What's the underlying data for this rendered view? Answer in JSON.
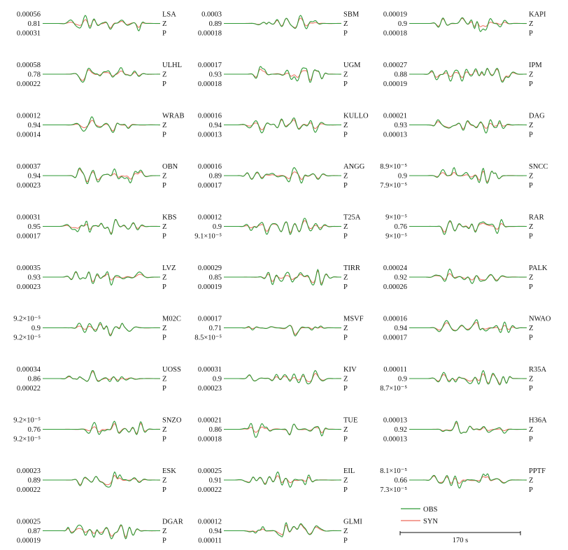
{
  "chart_data": {
    "type": "line",
    "legend": {
      "placement": "bottom-right",
      "entries": [
        "OBS",
        "SYN"
      ]
    },
    "colors": {
      "OBS": "#2e9a36",
      "SYN": "#ee6b5a"
    },
    "scale_bar_label": "170 s",
    "panels": [
      {
        "station": "LSA",
        "component": "Z",
        "phase": "P",
        "obs_amp": "0.00056",
        "cc": "0.81",
        "syn_amp": "0.00031"
      },
      {
        "station": "SBM",
        "component": "Z",
        "phase": "P",
        "obs_amp": "0.0003",
        "cc": "0.89",
        "syn_amp": "0.00018"
      },
      {
        "station": "KAPI",
        "component": "Z",
        "phase": "P",
        "obs_amp": "0.00019",
        "cc": "0.9",
        "syn_amp": "0.00018"
      },
      {
        "station": "ULHL",
        "component": "Z",
        "phase": "P",
        "obs_amp": "0.00058",
        "cc": "0.78",
        "syn_amp": "0.00022"
      },
      {
        "station": "UGM",
        "component": "Z",
        "phase": "P",
        "obs_amp": "0.00017",
        "cc": "0.93",
        "syn_amp": "0.00018"
      },
      {
        "station": "IPM",
        "component": "Z",
        "phase": "P",
        "obs_amp": "0.00027",
        "cc": "0.88",
        "syn_amp": "0.00019"
      },
      {
        "station": "WRAB",
        "component": "Z",
        "phase": "P",
        "obs_amp": "0.00012",
        "cc": "0.94",
        "syn_amp": "0.00014"
      },
      {
        "station": "KULLO",
        "component": "Z",
        "phase": "P",
        "obs_amp": "0.00016",
        "cc": "0.94",
        "syn_amp": "0.00013"
      },
      {
        "station": "DAG",
        "component": "Z",
        "phase": "P",
        "obs_amp": "0.00021",
        "cc": "0.93",
        "syn_amp": "0.00013"
      },
      {
        "station": "OBN",
        "component": "Z",
        "phase": "P",
        "obs_amp": "0.00037",
        "cc": "0.94",
        "syn_amp": "0.00023"
      },
      {
        "station": "ANGG",
        "component": "Z",
        "phase": "P",
        "obs_amp": "0.00016",
        "cc": "0.89",
        "syn_amp": "0.00017"
      },
      {
        "station": "SNCC",
        "component": "Z",
        "phase": "P",
        "obs_amp": "8.9×10⁻⁵",
        "cc": "0.9",
        "syn_amp": "7.9×10⁻⁵"
      },
      {
        "station": "KBS",
        "component": "Z",
        "phase": "P",
        "obs_amp": "0.00031",
        "cc": "0.95",
        "syn_amp": "0.00017"
      },
      {
        "station": "T25A",
        "component": "Z",
        "phase": "P",
        "obs_amp": "0.00012",
        "cc": "0.9",
        "syn_amp": "9.1×10⁻⁵"
      },
      {
        "station": "RAR",
        "component": "Z",
        "phase": "P",
        "obs_amp": "9×10⁻⁵",
        "cc": "0.76",
        "syn_amp": "9×10⁻⁵"
      },
      {
        "station": "LVZ",
        "component": "Z",
        "phase": "P",
        "obs_amp": "0.00035",
        "cc": "0.93",
        "syn_amp": "0.00023"
      },
      {
        "station": "TIRR",
        "component": "Z",
        "phase": "P",
        "obs_amp": "0.00029",
        "cc": "0.85",
        "syn_amp": "0.00019"
      },
      {
        "station": "PALK",
        "component": "Z",
        "phase": "P",
        "obs_amp": "0.00024",
        "cc": "0.92",
        "syn_amp": "0.00026"
      },
      {
        "station": "M02C",
        "component": "Z",
        "phase": "P",
        "obs_amp": "9.2×10⁻⁵",
        "cc": "0.9",
        "syn_amp": "9.2×10⁻⁵"
      },
      {
        "station": "MSVF",
        "component": "Z",
        "phase": "P",
        "obs_amp": "0.00017",
        "cc": "0.71",
        "syn_amp": "8.5×10⁻⁵"
      },
      {
        "station": "NWAO",
        "component": "Z",
        "phase": "P",
        "obs_amp": "0.00016",
        "cc": "0.94",
        "syn_amp": "0.00017"
      },
      {
        "station": "UOSS",
        "component": "Z",
        "phase": "P",
        "obs_amp": "0.00034",
        "cc": "0.86",
        "syn_amp": "0.00022"
      },
      {
        "station": "KIV",
        "component": "Z",
        "phase": "P",
        "obs_amp": "0.00031",
        "cc": "0.9",
        "syn_amp": "0.00023"
      },
      {
        "station": "R35A",
        "component": "Z",
        "phase": "P",
        "obs_amp": "0.00011",
        "cc": "0.9",
        "syn_amp": "8.7×10⁻⁵"
      },
      {
        "station": "SNZO",
        "component": "Z",
        "phase": "P",
        "obs_amp": "9.2×10⁻⁵",
        "cc": "0.76",
        "syn_amp": "9.2×10⁻⁵"
      },
      {
        "station": "TUE",
        "component": "Z",
        "phase": "P",
        "obs_amp": "0.00021",
        "cc": "0.86",
        "syn_amp": "0.00018"
      },
      {
        "station": "H36A",
        "component": "Z",
        "phase": "P",
        "obs_amp": "0.00013",
        "cc": "0.92",
        "syn_amp": "0.00013"
      },
      {
        "station": "ESK",
        "component": "Z",
        "phase": "P",
        "obs_amp": "0.00023",
        "cc": "0.89",
        "syn_amp": "0.00022"
      },
      {
        "station": "EIL",
        "component": "Z",
        "phase": "P",
        "obs_amp": "0.00025",
        "cc": "0.91",
        "syn_amp": "0.00022"
      },
      {
        "station": "PPTF",
        "component": "Z",
        "phase": "P",
        "obs_amp": "8.1×10⁻⁵",
        "cc": "0.66",
        "syn_amp": "7.3×10⁻⁵"
      },
      {
        "station": "DGAR",
        "component": "Z",
        "phase": "P",
        "obs_amp": "0.00025",
        "cc": "0.87",
        "syn_amp": "0.00019"
      },
      {
        "station": "GLMI",
        "component": "Z",
        "phase": "P",
        "obs_amp": "0.00012",
        "cc": "0.94",
        "syn_amp": "0.00011"
      }
    ]
  }
}
